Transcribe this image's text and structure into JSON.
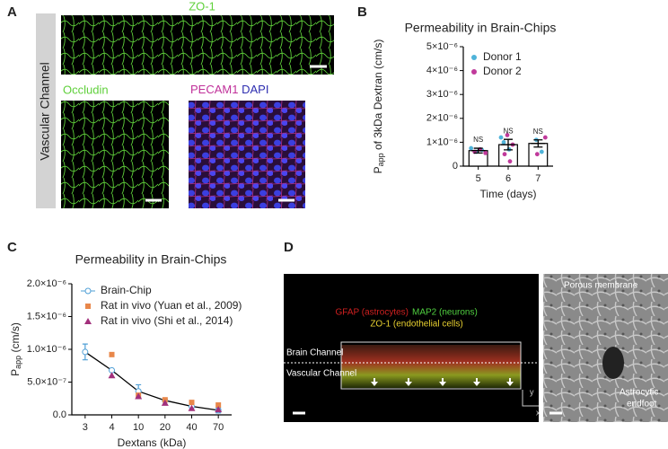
{
  "panels": {
    "a": {
      "label": "A",
      "side_label": "Vascular Channel",
      "top_caption": "ZO-1",
      "left_caption": "Occludin",
      "right_caption_1": "PECAM1",
      "right_caption_2": "DAPI"
    },
    "b": {
      "label": "B"
    },
    "c": {
      "label": "C"
    },
    "d": {
      "label": "D",
      "legend_1": "GFAP (astrocytes)",
      "legend_2": "MAP2 (neurons)",
      "legend_3": "ZO-1 (endothelial cells)",
      "upper_channel": "Brain Channel",
      "lower_channel": "Vascular Channel",
      "axis_y": "y",
      "axis_x": "x",
      "membrane": "Porous membrane",
      "endfoot_1": "Astrocytic",
      "endfoot_2": "endfoot"
    }
  },
  "chart_data": [
    {
      "type": "bar",
      "title": "Permeability in Brain-Chips",
      "y_label": {
        "main": "P",
        "sub": "app",
        "rest": " of 3kDa Dextran (cm/s)"
      },
      "x_label": "Time (days)",
      "categories": [
        "5",
        "6",
        "7"
      ],
      "values": [
        6.5e-07,
        9e-07,
        9.5e-07
      ],
      "errors": [
        1e-07,
        2.2e-07,
        1.5e-07
      ],
      "annotations": [
        "NS",
        "NS",
        "NS"
      ],
      "color": "#ffffff",
      "series": [
        {
          "name": "Donor 1",
          "color": "#4fb3d9",
          "x": [
            5,
            5,
            5,
            6,
            6,
            6,
            7,
            7
          ],
          "values": [
            7.5e-07,
            6e-07,
            6.8e-07,
            1e-06,
            7e-07,
            1.2e-06,
            1.1e-06,
            6e-07
          ]
        },
        {
          "name": "Donor 2",
          "color": "#c03a9b",
          "x": [
            5,
            5,
            5,
            6,
            6,
            6,
            6,
            7,
            7
          ],
          "values": [
            6e-07,
            7e-07,
            5.5e-07,
            1.3e-06,
            9e-07,
            5e-07,
            2e-07,
            1.2e-06,
            5e-07
          ]
        }
      ],
      "ylim": [
        0,
        5e-06
      ],
      "yticks": [
        0,
        {
          "value": 1e-06,
          "label": "1×10⁻⁶"
        },
        {
          "value": 2e-06,
          "label": "2×10⁻⁶"
        },
        {
          "value": 3e-06,
          "label": "3×10⁻⁶"
        },
        {
          "value": 4e-06,
          "label": "4×10⁻⁶"
        },
        {
          "value": 5e-06,
          "label": "5×10⁻⁶"
        }
      ]
    },
    {
      "type": "line",
      "title": "Permeability in Brain-Chips",
      "y_label": {
        "main": "P",
        "sub": "app",
        "rest": " (cm/s)"
      },
      "x_label": "Dextans (kDa)",
      "categories": [
        "3",
        "4",
        "10",
        "20",
        "40",
        "70"
      ],
      "series": [
        {
          "name": "Brain-Chip",
          "color": "#4f9fd6",
          "marker": "circle",
          "line": true,
          "values": [
            9.6e-07,
            6.8e-07,
            3.6e-07,
            2.2e-07,
            1.3e-07,
            7e-08
          ],
          "errors": [
            1.2e-07,
            null,
            1e-07,
            null,
            5e-08,
            4e-08
          ]
        },
        {
          "name": "Rat in vivo (Yuan et al., 2009)",
          "color": "#e8874a",
          "marker": "square",
          "line": false,
          "values": [
            null,
            9.2e-07,
            3e-07,
            2.3e-07,
            1.9e-07,
            1.5e-07
          ]
        },
        {
          "name": "Rat in vivo (Shi et al., 2014)",
          "color": "#a2307c",
          "marker": "triangle",
          "line": false,
          "values": [
            null,
            6e-07,
            2.8e-07,
            1.8e-07,
            1e-07,
            8e-08
          ]
        }
      ],
      "ylim": [
        0,
        2e-06
      ],
      "yticks": [
        {
          "value": 0,
          "label": "0.0"
        },
        {
          "value": 5e-07,
          "label": "5.0×10⁻⁷"
        },
        {
          "value": 1e-06,
          "label": "1.0×10⁻⁶"
        },
        {
          "value": 1.5e-06,
          "label": "1.5×10⁻⁶"
        },
        {
          "value": 2e-06,
          "label": "2.0×10⁻⁶"
        }
      ]
    }
  ]
}
